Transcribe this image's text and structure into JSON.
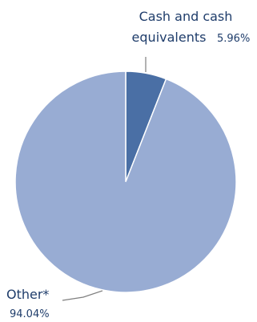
{
  "chart_data": {
    "type": "pie",
    "slices": [
      {
        "label_lines": [
          "Cash and cash",
          "equivalents"
        ],
        "percent_label": "5.96%",
        "value": 5.96,
        "color": "#4a6fa5"
      },
      {
        "label_lines": [
          "Other*"
        ],
        "percent_label": "94.04%",
        "value": 94.04,
        "color": "#98acd3"
      }
    ],
    "start_angle_deg": 0,
    "direction": "clockwise",
    "legend": "none"
  },
  "colors": {
    "label_text": "#1f3d6b",
    "leader_line": "#7f7f7f"
  }
}
